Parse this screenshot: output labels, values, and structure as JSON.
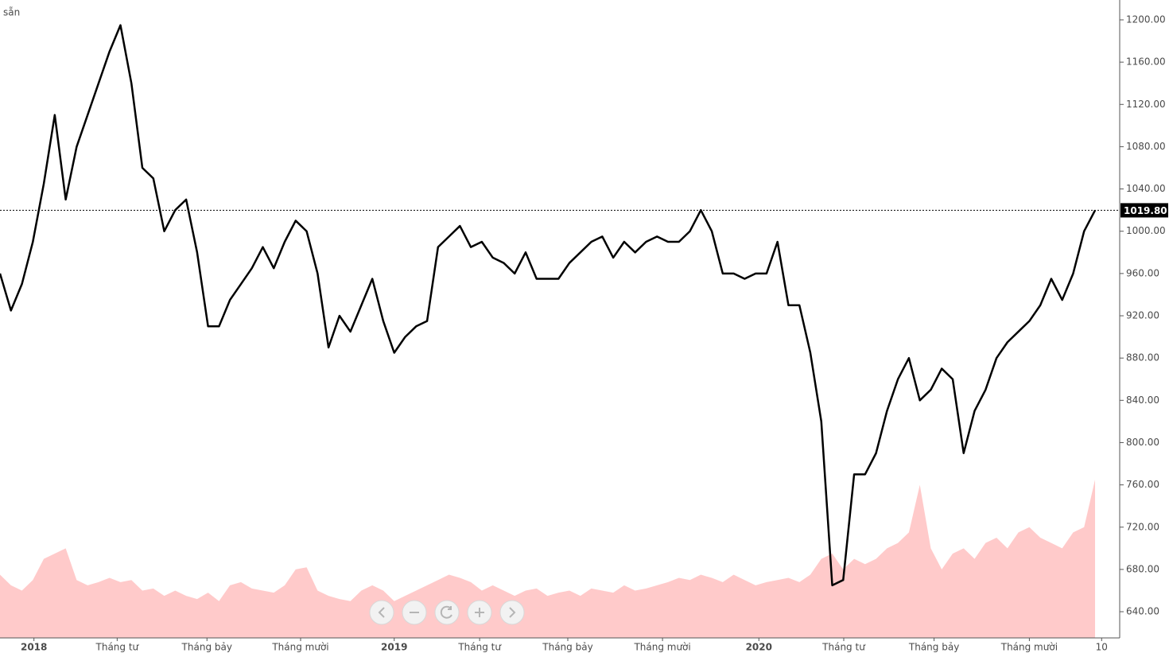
{
  "chart_data": {
    "type": "line",
    "title": "sẵn",
    "xlim": [
      0,
      102.25
    ],
    "ylim": [
      615.2,
      1218.8
    ],
    "xticks": [
      {
        "value": 3.1,
        "label": "2018"
      },
      {
        "value": 10.7,
        "label": "Tháng tư"
      },
      {
        "value": 18.9,
        "label": "Tháng bảy"
      },
      {
        "value": 27.45,
        "label": "Tháng mười"
      },
      {
        "value": 36.0,
        "label": "2019"
      },
      {
        "value": 43.8,
        "label": "Tháng tư"
      },
      {
        "value": 51.85,
        "label": "Tháng bảy"
      },
      {
        "value": 60.5,
        "label": "Tháng mười"
      },
      {
        "value": 69.3,
        "label": "2020"
      },
      {
        "value": 77.05,
        "label": "Tháng tư"
      },
      {
        "value": 85.3,
        "label": "Tháng bảy"
      },
      {
        "value": 94.0,
        "label": "Tháng mười"
      },
      {
        "value": 100.6,
        "label": "10"
      }
    ],
    "yticks": [
      {
        "value": 640,
        "label": "640.00"
      },
      {
        "value": 680,
        "label": "680.00"
      },
      {
        "value": 720,
        "label": "720.00"
      },
      {
        "value": 760,
        "label": "760.00"
      },
      {
        "value": 800,
        "label": "800.00"
      },
      {
        "value": 840,
        "label": "840.00"
      },
      {
        "value": 880,
        "label": "880.00"
      },
      {
        "value": 920,
        "label": "920.00"
      },
      {
        "value": 960,
        "label": "960.00"
      },
      {
        "value": 1000,
        "label": "1000.00"
      },
      {
        "value": 1040,
        "label": "1040.00"
      },
      {
        "value": 1080,
        "label": "1080.00"
      },
      {
        "value": 1120,
        "label": "1120.00"
      },
      {
        "value": 1160,
        "label": "1160.00"
      },
      {
        "value": 1200,
        "label": "1200.00"
      }
    ],
    "last_value_label": "1019.80",
    "series": [
      {
        "color": "#000000",
        "values": [
          960,
          925,
          950,
          990,
          1045,
          1110,
          1030,
          1080,
          1110,
          1140,
          1170,
          1195,
          1140,
          1060,
          1050,
          1000,
          1020,
          1030,
          980,
          910,
          910,
          935,
          950,
          965,
          985,
          965,
          990,
          1010,
          1000,
          960,
          890,
          920,
          905,
          930,
          955,
          915,
          885,
          900,
          910,
          915,
          985,
          995,
          1005,
          985,
          990,
          975,
          970,
          960,
          980,
          955,
          955,
          955,
          970,
          980,
          990,
          995,
          975,
          990,
          980,
          990,
          995,
          990,
          990,
          1000,
          1020,
          1000,
          960,
          960,
          955,
          960,
          960,
          990,
          930,
          930,
          885,
          820,
          665,
          670,
          770,
          770,
          790,
          830,
          860,
          880,
          840,
          850,
          870,
          860,
          790,
          830,
          850,
          880,
          895,
          905,
          915,
          930,
          955,
          935,
          960,
          1000,
          1019.8
        ]
      },
      {
        "color": "#ffb3b3",
        "values": [
          675,
          665,
          660,
          670,
          690,
          695,
          700,
          670,
          665,
          668,
          672,
          668,
          670,
          660,
          662,
          655,
          660,
          655,
          652,
          658,
          650,
          665,
          668,
          662,
          660,
          658,
          665,
          680,
          682,
          660,
          655,
          652,
          650,
          660,
          665,
          660,
          650,
          655,
          660,
          665,
          670,
          675,
          672,
          668,
          660,
          665,
          660,
          655,
          660,
          662,
          655,
          658,
          660,
          655,
          662,
          660,
          658,
          665,
          660,
          662,
          665,
          668,
          672,
          670,
          675,
          672,
          668,
          675,
          670,
          665,
          668,
          670,
          672,
          668,
          675,
          690,
          695,
          680,
          690,
          685,
          690,
          700,
          705,
          715,
          760,
          700,
          680,
          695,
          700,
          690,
          705,
          710,
          700,
          715,
          720,
          710,
          705,
          700,
          715,
          720,
          765
        ]
      }
    ]
  }
}
